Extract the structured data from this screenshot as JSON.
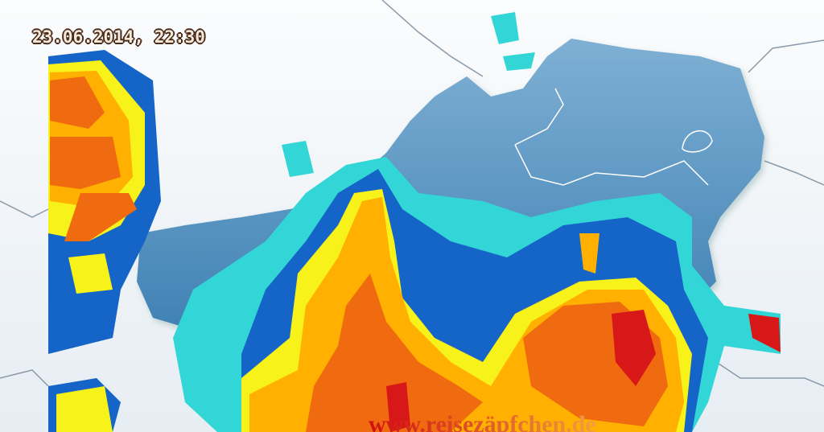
{
  "map": {
    "timestamp": "23.06.2014, 22:30",
    "watermark": "www.reisezäpfchen.de",
    "colors": {
      "background": "#f4f7fa",
      "country": "#4f8fbf",
      "border": "#ffffff",
      "intensity_levels": [
        "#33d6d6",
        "#1565c8",
        "#1e3fa8",
        "#f7f21a",
        "#ffb000",
        "#f06a10",
        "#d81818"
      ]
    }
  }
}
